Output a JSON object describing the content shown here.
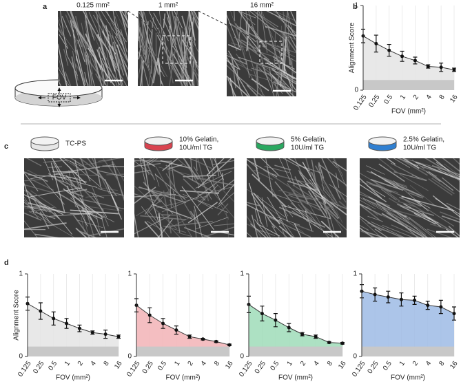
{
  "panel_labels": [
    "a",
    "b",
    "c",
    "d"
  ],
  "fov_images": [
    "0.125 mm²",
    "1 mm²",
    "16 mm²"
  ],
  "dish_label": "FOV",
  "conditions": [
    {
      "lines": [
        "TC-PS"
      ],
      "color": "#e6e6e6"
    },
    {
      "lines": [
        "10% Gelatin,",
        "10U/ml TG"
      ],
      "color": "#d9434f"
    },
    {
      "lines": [
        "5% Gelatin,",
        "10U/ml TG"
      ],
      "color": "#2aa860"
    },
    {
      "lines": [
        "2.5% Gelatin,",
        "10U/ml TG"
      ],
      "color": "#2f7fd1"
    }
  ],
  "chart_data": [
    {
      "type": "line",
      "ylabel": "Alignment Score",
      "xlabel": "FOV (mm²)",
      "categories": [
        "0.125",
        "0.25",
        "0.5",
        "1",
        "2",
        "4",
        "8",
        "16"
      ],
      "values": [
        0.64,
        0.55,
        0.47,
        0.4,
        0.35,
        0.28,
        0.27,
        0.24
      ],
      "errors": [
        0.08,
        0.1,
        0.07,
        0.06,
        0.04,
        0.02,
        0.05,
        0.02
      ],
      "color": "#333333",
      "fill": "#e4e4e4",
      "baseline": 0.12,
      "baseline_color": "#c8c8c8",
      "ylim": [
        0,
        1
      ],
      "yticks": [
        0,
        1
      ],
      "grid": true
    },
    {
      "type": "line",
      "ylabel": "Alignment Score",
      "xlabel": "FOV (mm²)",
      "categories": [
        "0.125",
        "0.25",
        "0.5",
        "1",
        "2",
        "4",
        "8",
        "16"
      ],
      "values": [
        0.64,
        0.55,
        0.46,
        0.4,
        0.34,
        0.29,
        0.27,
        0.24
      ],
      "errors": [
        0.08,
        0.1,
        0.08,
        0.06,
        0.04,
        0.02,
        0.05,
        0.02
      ],
      "color": "#333333",
      "fill": "#e4e4e4",
      "baseline": 0.12,
      "baseline_color": "#c8c8c8",
      "ylim": [
        0,
        1
      ],
      "yticks": [
        0,
        1
      ],
      "grid": true
    },
    {
      "type": "line",
      "xlabel": "FOV (mm²)",
      "categories": [
        "0.125",
        "0.25",
        "0.5",
        "1",
        "2",
        "4",
        "8",
        "16"
      ],
      "values": [
        0.62,
        0.5,
        0.4,
        0.32,
        0.24,
        0.21,
        0.18,
        0.14
      ],
      "errors": [
        0.08,
        0.09,
        0.06,
        0.05,
        0.02,
        0.01,
        0.01,
        0.01
      ],
      "color": "#333333",
      "fill": "#f2b3b6",
      "baseline": 0.12,
      "baseline_color": "#c8c8c8",
      "ylim": [
        0,
        1
      ],
      "yticks": [
        0,
        1
      ],
      "grid": true
    },
    {
      "type": "line",
      "xlabel": "FOV (mm²)",
      "categories": [
        "0.125",
        "0.25",
        "0.5",
        "1",
        "2",
        "4",
        "8",
        "16"
      ],
      "values": [
        0.63,
        0.52,
        0.44,
        0.35,
        0.27,
        0.24,
        0.17,
        0.16
      ],
      "errors": [
        0.1,
        0.09,
        0.08,
        0.05,
        0.02,
        0.02,
        0.01,
        0.01
      ],
      "color": "#333333",
      "fill": "#9fdcb8",
      "baseline": 0.12,
      "baseline_color": "#c8c8c8",
      "ylim": [
        0,
        1
      ],
      "yticks": [
        0,
        1
      ],
      "grid": true
    },
    {
      "type": "line",
      "xlabel": "FOV (mm²)",
      "categories": [
        "0.125",
        "0.25",
        "0.5",
        "1",
        "2",
        "4",
        "8",
        "16"
      ],
      "values": [
        0.79,
        0.75,
        0.72,
        0.69,
        0.68,
        0.62,
        0.6,
        0.52
      ],
      "errors": [
        0.08,
        0.08,
        0.07,
        0.08,
        0.05,
        0.05,
        0.08,
        0.08
      ],
      "color": "#333333",
      "fill": "#9dbbe5",
      "baseline": 0.12,
      "baseline_color": "#c8c8c8",
      "ylim": [
        0,
        1
      ],
      "yticks": [
        0,
        1
      ],
      "grid": true
    }
  ]
}
